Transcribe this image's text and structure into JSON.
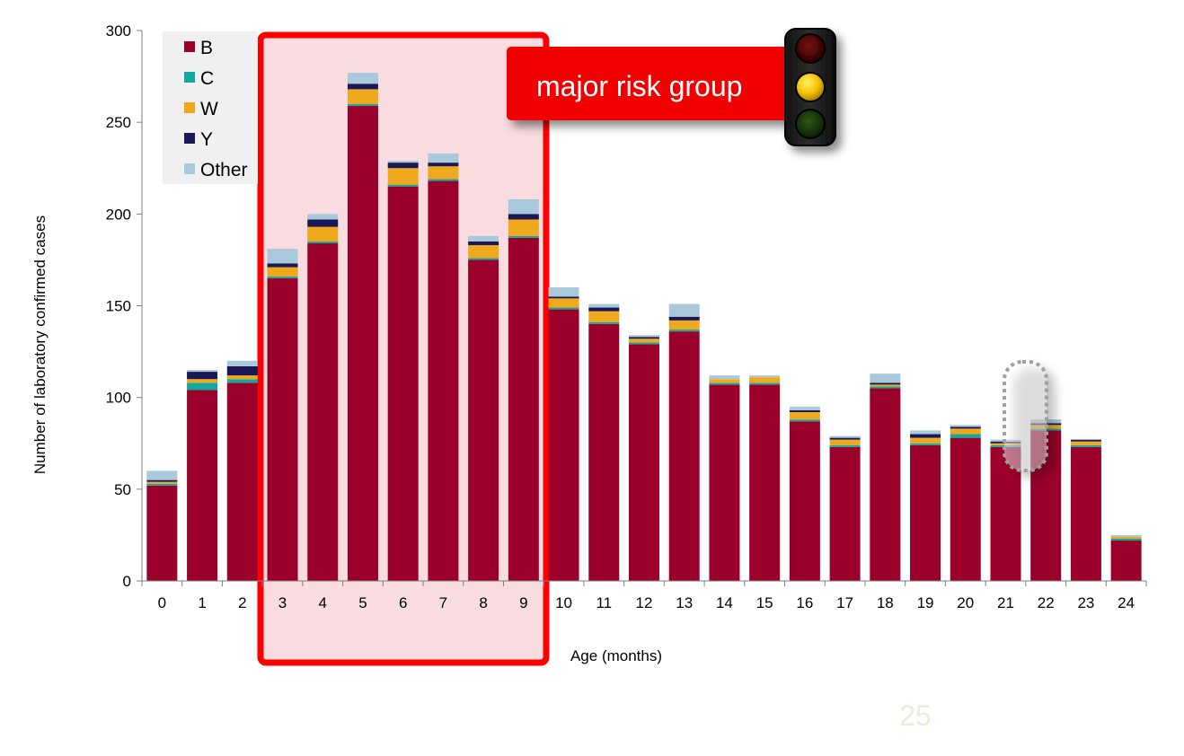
{
  "colors": {
    "B": "#9b002b",
    "C": "#13a89e",
    "W": "#f0a81c",
    "Y": "#1b1857",
    "Other": "#a9c8da",
    "highlight_fill": "#f8dcdf",
    "highlight_border": "#ff0000",
    "callout_bg": "#f20000",
    "legend_bg": "#f0f0f0"
  },
  "callout": {
    "text": "major risk group",
    "icon": "traffic-light-icon"
  },
  "page_number": "25",
  "chart_data": {
    "type": "bar",
    "stacked": true,
    "categories": [
      "0",
      "1",
      "2",
      "3",
      "4",
      "5",
      "6",
      "7",
      "8",
      "9",
      "10",
      "11",
      "12",
      "13",
      "14",
      "15",
      "16",
      "17",
      "18",
      "19",
      "20",
      "21",
      "22",
      "23",
      "24"
    ],
    "series": [
      {
        "name": "B",
        "values": [
          52,
          104,
          108,
          165,
          184,
          259,
          215,
          218,
          175,
          187,
          148,
          140,
          129,
          136,
          107,
          107,
          87,
          73,
          105,
          74,
          78,
          73,
          82,
          73,
          22
        ]
      },
      {
        "name": "C",
        "values": [
          1,
          4,
          2,
          1,
          1,
          1,
          1,
          1,
          1,
          1,
          1,
          1,
          1,
          1,
          1,
          1,
          1,
          1,
          1,
          1,
          2,
          1,
          1,
          1,
          1
        ]
      },
      {
        "name": "W",
        "values": [
          1,
          2,
          2,
          5,
          8,
          8,
          9,
          7,
          7,
          9,
          5,
          6,
          2,
          5,
          2,
          3,
          4,
          3,
          1,
          3,
          3,
          1,
          2,
          2,
          1
        ]
      },
      {
        "name": "Y",
        "values": [
          1,
          4,
          5,
          2,
          4,
          3,
          3,
          2,
          2,
          3,
          1,
          2,
          1,
          2,
          0,
          0,
          1,
          1,
          1,
          2,
          1,
          1,
          1,
          1,
          0
        ]
      },
      {
        "name": "Other",
        "values": [
          5,
          1,
          3,
          8,
          3,
          6,
          1,
          5,
          3,
          8,
          5,
          2,
          1,
          7,
          2,
          1,
          2,
          1,
          5,
          2,
          1,
          1,
          2,
          0,
          1
        ]
      }
    ],
    "xlabel": "Age (months)",
    "ylabel": "Number of laboratory confirmed cases",
    "ylim": [
      0,
      300
    ],
    "yticks": [
      "0",
      "50",
      "100",
      "150",
      "200",
      "250",
      "300"
    ],
    "grid": false,
    "legend": [
      "B",
      "C",
      "W",
      "Y",
      "Other"
    ],
    "legend_position": "top-left",
    "highlight_range": [
      "3",
      "9"
    ],
    "dotted_marker_category": "21.5"
  }
}
